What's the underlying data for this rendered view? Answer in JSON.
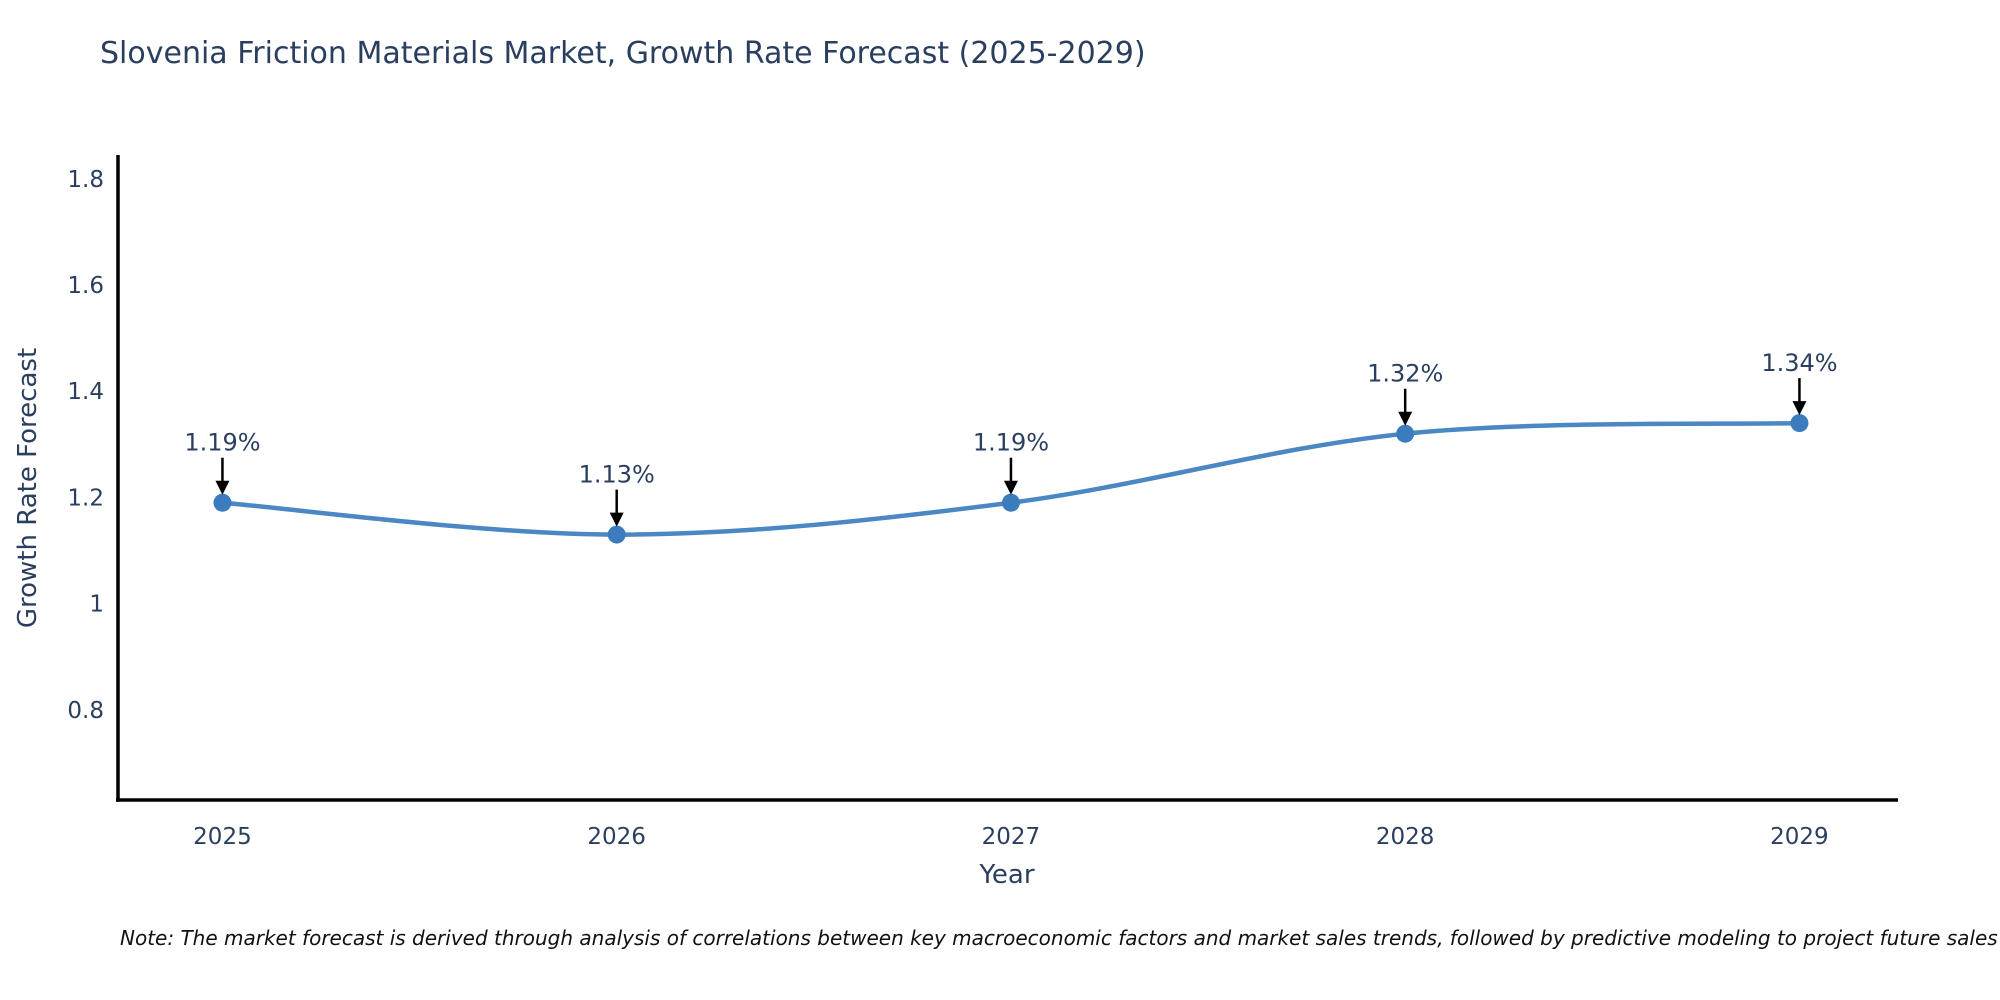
{
  "page": {
    "background": "#ffffff"
  },
  "chart": {
    "note": "Note: The market forecast is derived through analysis of correlations between key macroeconomic factors and market sales trends, followed by predictive modeling to project future sales",
    "colors": {
      "line": "#4a87c3",
      "marker": "#3a7cbd",
      "axis_line": "#000000",
      "text": "#2a3f5f",
      "annotation_arrow": "#000000",
      "note_text": "#111111"
    }
  },
  "chart_data": {
    "type": "line",
    "title": "Slovenia Friction Materials Market, Growth Rate Forecast (2025-2029)",
    "xlabel": "Year",
    "ylabel": "Growth Rate Forecast",
    "x": [
      2025,
      2026,
      2027,
      2028,
      2029
    ],
    "y": [
      1.19,
      1.13,
      1.19,
      1.32,
      1.34
    ],
    "point_labels": [
      "1.19%",
      "1.13%",
      "1.19%",
      "1.32%",
      "1.34%"
    ],
    "xtick_labels": [
      "2025",
      "2026",
      "2027",
      "2028",
      "2029"
    ],
    "ytick_values": [
      1.8,
      1.6,
      1.4,
      1.2,
      1.0,
      0.8
    ],
    "ytick_labels": [
      "1.8",
      "1.6",
      "1.4",
      "1.2",
      "1",
      "0.8"
    ],
    "xlim": [
      2024.73,
      2029.25
    ],
    "ylim": [
      0.63,
      1.845
    ],
    "grid": false,
    "legend": false,
    "line_shape": "spline",
    "marker": "circle",
    "annotations": "value labels with downward arrows above each point"
  }
}
